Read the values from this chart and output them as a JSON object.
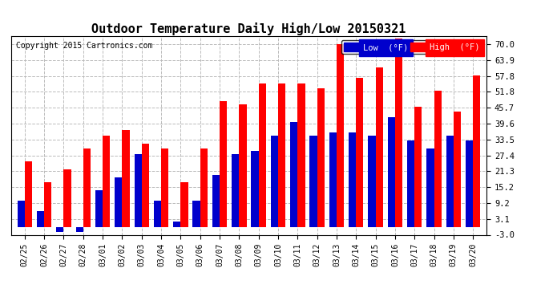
{
  "title": "Outdoor Temperature Daily High/Low 20150321",
  "copyright": "Copyright 2015 Cartronics.com",
  "dates": [
    "02/25",
    "02/26",
    "02/27",
    "02/28",
    "03/01",
    "03/02",
    "03/03",
    "03/04",
    "03/05",
    "03/06",
    "03/07",
    "03/08",
    "03/09",
    "03/10",
    "03/11",
    "03/12",
    "03/13",
    "03/14",
    "03/15",
    "03/16",
    "03/17",
    "03/18",
    "03/19",
    "03/20"
  ],
  "high": [
    25.0,
    17.0,
    22.0,
    30.0,
    35.0,
    37.0,
    32.0,
    30.0,
    17.0,
    30.0,
    48.0,
    47.0,
    55.0,
    55.0,
    55.0,
    53.0,
    70.0,
    57.0,
    61.0,
    72.0,
    46.0,
    52.0,
    44.0,
    58.0
  ],
  "low": [
    10.0,
    6.0,
    -2.0,
    -2.0,
    14.0,
    19.0,
    28.0,
    10.0,
    2.0,
    10.0,
    20.0,
    28.0,
    29.0,
    35.0,
    40.0,
    35.0,
    36.0,
    36.0,
    35.0,
    42.0,
    33.0,
    30.0,
    35.0,
    33.0
  ],
  "yticks": [
    -3.0,
    3.1,
    9.2,
    15.2,
    21.3,
    27.4,
    33.5,
    39.6,
    45.7,
    51.8,
    57.8,
    63.9,
    70.0
  ],
  "ylim": [
    -3.0,
    73.0
  ],
  "bar_width": 0.38,
  "high_color": "#ff0000",
  "low_color": "#0000cc",
  "bg_color": "#ffffff",
  "grid_color": "#bbbbbb",
  "title_fontsize": 11,
  "copyright_fontsize": 7,
  "legend_low_label": "Low  (°F)",
  "legend_high_label": "High  (°F)"
}
